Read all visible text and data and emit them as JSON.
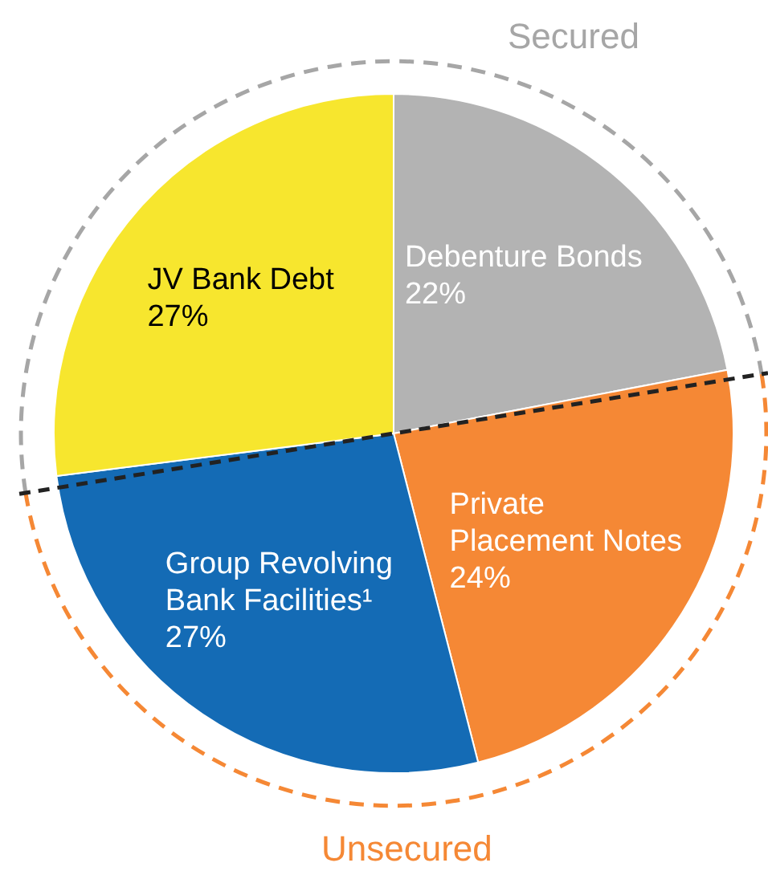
{
  "chart_data": {
    "type": "pie",
    "categories": [
      "Debenture Bonds",
      "Private Placement Notes",
      "Group Revolving Bank Facilities¹",
      "JV Bank Debt"
    ],
    "values": [
      22,
      24,
      27,
      27
    ],
    "colors": [
      "#b3b3b3",
      "#f58835",
      "#146bb5",
      "#f7e62e"
    ],
    "value_labels": [
      "22%",
      "24%",
      "27%",
      "27%"
    ],
    "annotations": [
      "Secured",
      "Unsecured"
    ],
    "legend": false
  }
}
